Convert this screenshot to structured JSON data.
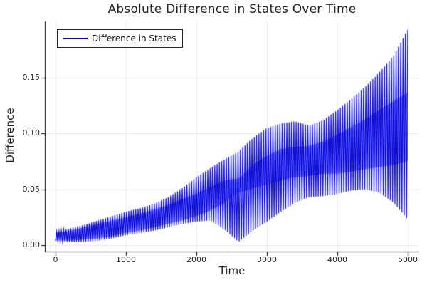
{
  "chart_data": {
    "type": "line",
    "title": "Absolute Difference in States Over Time",
    "xlabel": "Time",
    "ylabel": "Difference",
    "legend_label": "Difference in States",
    "legend_position": "top-left",
    "grid": true,
    "line_color": "#0000ec",
    "dense_fill_color": "rgba(0,0,215,0.42)",
    "grid_color": "#e9e9e9",
    "axis_color": "#000000",
    "text_color": "#262626",
    "x_ticks": [
      0,
      1000,
      2000,
      3000,
      4000,
      5000
    ],
    "x_tick_labels": [
      "0",
      "1000",
      "2000",
      "3000",
      "4000",
      "5000"
    ],
    "y_ticks": [
      0,
      0.05,
      0.1,
      0.15
    ],
    "y_tick_labels": [
      "0.00",
      "0.05",
      "0.10",
      "0.15"
    ],
    "xlim": [
      -152,
      5162
    ],
    "ylim": [
      -0.0057,
      0.2005
    ],
    "oscillation_period": 33,
    "envelope_t": [
      0,
      200,
      400,
      600,
      800,
      1000,
      1200,
      1400,
      1600,
      1800,
      2000,
      2200,
      2400,
      2600,
      2800,
      3000,
      3200,
      3400,
      3600,
      3800,
      4000,
      4200,
      4400,
      4600,
      4800,
      5000
    ],
    "envelope_upper": [
      0.012,
      0.015,
      0.018,
      0.022,
      0.026,
      0.03,
      0.033,
      0.037,
      0.043,
      0.051,
      0.061,
      0.069,
      0.077,
      0.084,
      0.096,
      0.105,
      0.109,
      0.111,
      0.107,
      0.112,
      0.121,
      0.131,
      0.142,
      0.155,
      0.17,
      0.193
    ],
    "envelope_lower": [
      0.004,
      0.003,
      0.003,
      0.004,
      0.006,
      0.009,
      0.011,
      0.013,
      0.016,
      0.019,
      0.021,
      0.022,
      0.014,
      0.003,
      0.013,
      0.021,
      0.03,
      0.038,
      0.043,
      0.044,
      0.046,
      0.049,
      0.05,
      0.047,
      0.038,
      0.023
    ],
    "dense_band_lower": [
      0.004,
      0.004,
      0.005,
      0.006,
      0.008,
      0.011,
      0.013,
      0.016,
      0.019,
      0.022,
      0.026,
      0.031,
      0.038,
      0.047,
      0.051,
      0.054,
      0.058,
      0.061,
      0.062,
      0.064,
      0.064,
      0.066,
      0.068,
      0.07,
      0.072,
      0.075
    ],
    "dense_band_upper": [
      0.011,
      0.013,
      0.016,
      0.019,
      0.022,
      0.025,
      0.028,
      0.032,
      0.036,
      0.041,
      0.046,
      0.052,
      0.058,
      0.06,
      0.072,
      0.08,
      0.086,
      0.088,
      0.089,
      0.093,
      0.099,
      0.106,
      0.113,
      0.121,
      0.129,
      0.137
    ]
  }
}
